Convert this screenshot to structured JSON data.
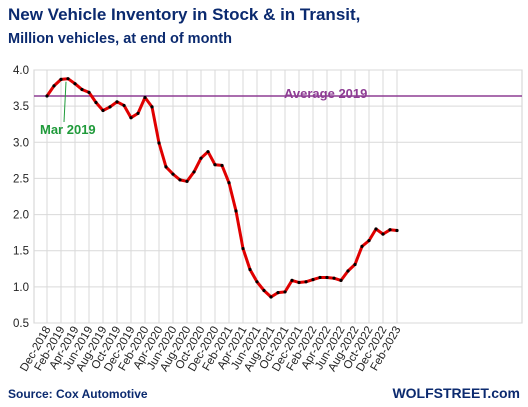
{
  "chart_data": {
    "type": "line",
    "title": "New Vehicle Inventory in Stock & in Transit,",
    "subtitle": "Million vehicles, at end of month",
    "xlabel": "",
    "ylabel": "",
    "ylim": [
      0.5,
      4.0
    ],
    "yticks": [
      "0.5",
      "1.0",
      "1.5",
      "2.0",
      "2.5",
      "3.0",
      "3.5",
      "4.0"
    ],
    "x_tick_labels": [
      "Dec-2018",
      "Feb-2019",
      "Apr-2019",
      "Jun-2019",
      "Aug-2019",
      "Oct-2019",
      "Dec-2019",
      "Feb-2020",
      "Apr-2020",
      "Jun-2020",
      "Aug-2020",
      "Oct-2020",
      "Dec-2020",
      "Feb-2021",
      "Apr-2021",
      "Jun-2021",
      "Aug-2021",
      "Oct-2021",
      "Dec-2021",
      "Feb-2022",
      "Apr-2022",
      "Jun-2022",
      "Aug-2022",
      "Oct-2022",
      "Dec-2022",
      "Feb-2023"
    ],
    "grid": true,
    "series": [
      {
        "color": "#e00000",
        "marker_color": "#000000",
        "x": [
          "Dec-2018",
          "Jan-2019",
          "Feb-2019",
          "Mar-2019",
          "Apr-2019",
          "May-2019",
          "Jun-2019",
          "Jul-2019",
          "Aug-2019",
          "Sep-2019",
          "Oct-2019",
          "Nov-2019",
          "Dec-2019",
          "Jan-2020",
          "Feb-2020",
          "Mar-2020",
          "Apr-2020",
          "May-2020",
          "Jun-2020",
          "Jul-2020",
          "Aug-2020",
          "Sep-2020",
          "Oct-2020",
          "Nov-2020",
          "Dec-2020",
          "Jan-2021",
          "Feb-2021",
          "Mar-2021",
          "Apr-2021",
          "May-2021",
          "Jun-2021",
          "Jul-2021",
          "Aug-2021",
          "Sep-2021",
          "Oct-2021",
          "Nov-2021",
          "Dec-2021",
          "Jan-2022",
          "Feb-2022",
          "Mar-2022",
          "Apr-2022",
          "May-2022",
          "Jun-2022",
          "Jul-2022",
          "Aug-2022",
          "Sep-2022",
          "Oct-2022",
          "Nov-2022",
          "Dec-2022",
          "Jan-2023",
          "Feb-2023"
        ],
        "values": [
          3.64,
          3.78,
          3.87,
          3.88,
          3.81,
          3.73,
          3.69,
          3.55,
          3.44,
          3.49,
          3.56,
          3.51,
          3.34,
          3.4,
          3.62,
          3.49,
          2.99,
          2.66,
          2.56,
          2.48,
          2.46,
          2.59,
          2.78,
          2.87,
          2.69,
          2.68,
          2.44,
          2.05,
          1.53,
          1.24,
          1.07,
          0.95,
          0.86,
          0.92,
          0.93,
          1.09,
          1.06,
          1.07,
          1.1,
          1.13,
          1.13,
          1.12,
          1.09,
          1.22,
          1.31,
          1.56,
          1.64,
          1.8,
          1.73,
          1.79,
          1.78
        ]
      }
    ],
    "reference_line": {
      "label": "Average 2019",
      "value": 3.64,
      "color": "#8e3d94"
    },
    "annotation": {
      "label": "Mar 2019",
      "x": "Mar-2019",
      "color": "#1f9a3a"
    }
  },
  "source": "Source: Cox Automotive",
  "brand": "WOLFSTREET.com"
}
